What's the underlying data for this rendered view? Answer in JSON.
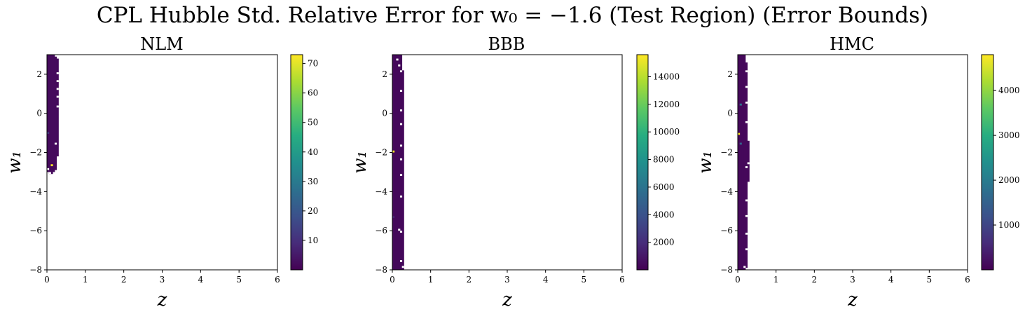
{
  "figure": {
    "title": "CPL Hubble Std. Relative Error for w₀ = −1.6 (Test Region) (Error Bounds)"
  },
  "chart_data": [
    {
      "type": "heatmap",
      "title": "NLM",
      "xlabel": "z",
      "ylabel": "w₁",
      "xlim": [
        0,
        6
      ],
      "ylim": [
        -8,
        3
      ],
      "xticks": [
        0,
        1,
        2,
        3,
        4,
        5,
        6
      ],
      "yticks": [
        -8,
        -6,
        -4,
        -2,
        0,
        2
      ],
      "colormap": "viridis",
      "colorbar": {
        "min": 0,
        "max": 73,
        "ticks": [
          10,
          20,
          30,
          40,
          50,
          60,
          70
        ]
      },
      "cell_width_z": 0.05,
      "cell_height_w1": 0.1,
      "columns": [
        {
          "x": 0.025,
          "ymin": -3.0,
          "ymax": 3.0,
          "value": 2
        },
        {
          "x": 0.075,
          "ymin": -3.1,
          "ymax": 3.0,
          "value": 2
        },
        {
          "x": 0.125,
          "ymin": -3.1,
          "ymax": 3.0,
          "value": 2
        },
        {
          "x": 0.175,
          "ymin": -3.0,
          "ymax": 3.0,
          "value": 2
        },
        {
          "x": 0.225,
          "ymin": -2.9,
          "ymax": 2.9,
          "value": 2
        },
        {
          "x": 0.275,
          "ymin": -2.2,
          "ymax": 2.8,
          "value": 2
        }
      ],
      "highlights": [
        {
          "x": 0.125,
          "y": -2.65,
          "value": 73
        },
        {
          "x": 0.025,
          "y": -1.0,
          "value": 12
        }
      ],
      "gaps": [
        {
          "x": 0.275,
          "y": 0.35
        },
        {
          "x": 0.275,
          "y": 0.85
        },
        {
          "x": 0.275,
          "y": 1.25
        },
        {
          "x": 0.275,
          "y": 1.65
        },
        {
          "x": 0.275,
          "y": 2.05
        },
        {
          "x": 0.225,
          "y": -1.55
        },
        {
          "x": 0.025,
          "y": -2.85
        },
        {
          "x": 0.075,
          "y": -3.05
        }
      ]
    },
    {
      "type": "heatmap",
      "title": "BBB",
      "xlabel": "z",
      "ylabel": "w₁",
      "xlim": [
        0,
        6
      ],
      "ylim": [
        -8,
        3
      ],
      "xticks": [
        0,
        1,
        2,
        3,
        4,
        5,
        6
      ],
      "yticks": [
        -8,
        -6,
        -4,
        -2,
        0,
        2
      ],
      "colormap": "viridis",
      "colorbar": {
        "min": 0,
        "max": 15600,
        "ticks": [
          2000,
          4000,
          6000,
          8000,
          10000,
          12000,
          14000
        ]
      },
      "cell_width_z": 0.05,
      "cell_height_w1": 0.1,
      "columns": [
        {
          "x": 0.025,
          "ymin": -8.0,
          "ymax": 3.0,
          "value": 300
        },
        {
          "x": 0.075,
          "ymin": -8.0,
          "ymax": 3.0,
          "value": 300
        },
        {
          "x": 0.125,
          "ymin": -8.0,
          "ymax": 3.0,
          "value": 300
        },
        {
          "x": 0.175,
          "ymin": -8.0,
          "ymax": 3.0,
          "value": 300
        },
        {
          "x": 0.225,
          "ymin": -8.0,
          "ymax": 3.0,
          "value": 300
        },
        {
          "x": 0.275,
          "ymin": -8.0,
          "ymax": 2.2,
          "value": 300
        }
      ],
      "highlights": [
        {
          "x": 0.025,
          "y": -1.95,
          "value": 15600
        },
        {
          "x": 0.025,
          "y": -5.3,
          "value": 1500
        }
      ],
      "gaps": [
        {
          "x": 0.125,
          "y": 2.75
        },
        {
          "x": 0.175,
          "y": 2.45
        },
        {
          "x": 0.225,
          "y": 2.15
        },
        {
          "x": 0.225,
          "y": 1.15
        },
        {
          "x": 0.225,
          "y": 0.15
        },
        {
          "x": 0.225,
          "y": -0.55
        },
        {
          "x": 0.225,
          "y": -1.65
        },
        {
          "x": 0.225,
          "y": -2.35
        },
        {
          "x": 0.225,
          "y": -3.15
        },
        {
          "x": 0.225,
          "y": -4.25
        },
        {
          "x": 0.225,
          "y": -6.05
        },
        {
          "x": 0.225,
          "y": -7.55
        },
        {
          "x": 0.175,
          "y": -5.95
        },
        {
          "x": 0.275,
          "y": -7.85
        }
      ]
    },
    {
      "type": "heatmap",
      "title": "HMC",
      "xlabel": "z",
      "ylabel": "w₁",
      "xlim": [
        0,
        6
      ],
      "ylim": [
        -8,
        3
      ],
      "xticks": [
        0,
        1,
        2,
        3,
        4,
        5,
        6
      ],
      "yticks": [
        -8,
        -6,
        -4,
        -2,
        0,
        2
      ],
      "colormap": "viridis",
      "colorbar": {
        "min": 0,
        "max": 4800,
        "ticks": [
          1000,
          2000,
          3000,
          4000
        ]
      },
      "cell_width_z": 0.05,
      "cell_height_w1": 0.1,
      "columns": [
        {
          "x": 0.025,
          "ymin": -8.0,
          "ymax": 3.0,
          "value": 100
        },
        {
          "x": 0.075,
          "ymin": -8.0,
          "ymax": 3.0,
          "value": 100
        },
        {
          "x": 0.125,
          "ymin": -8.0,
          "ymax": 3.0,
          "value": 100
        },
        {
          "x": 0.175,
          "ymin": -8.0,
          "ymax": 3.0,
          "value": 100
        },
        {
          "x": 0.225,
          "ymin": -7.9,
          "ymax": 2.6,
          "value": 100
        },
        {
          "x": 0.275,
          "ymin": -3.5,
          "ymax": -1.4,
          "value": 100
        }
      ],
      "highlights": [
        {
          "x": 0.025,
          "y": -1.05,
          "value": 4800
        },
        {
          "x": 0.075,
          "y": 0.45,
          "value": 1800
        },
        {
          "x": 0.075,
          "y": -1.55,
          "value": 1500
        }
      ],
      "gaps": [
        {
          "x": 0.225,
          "y": 2.15
        },
        {
          "x": 0.225,
          "y": 1.35
        },
        {
          "x": 0.225,
          "y": 0.55
        },
        {
          "x": 0.225,
          "y": -0.45
        },
        {
          "x": 0.225,
          "y": -2.75
        },
        {
          "x": 0.225,
          "y": -4.45
        },
        {
          "x": 0.225,
          "y": -5.25
        },
        {
          "x": 0.225,
          "y": -6.15
        },
        {
          "x": 0.225,
          "y": -6.95
        },
        {
          "x": 0.275,
          "y": -2.55
        },
        {
          "x": 0.175,
          "y": -7.85
        }
      ]
    }
  ]
}
